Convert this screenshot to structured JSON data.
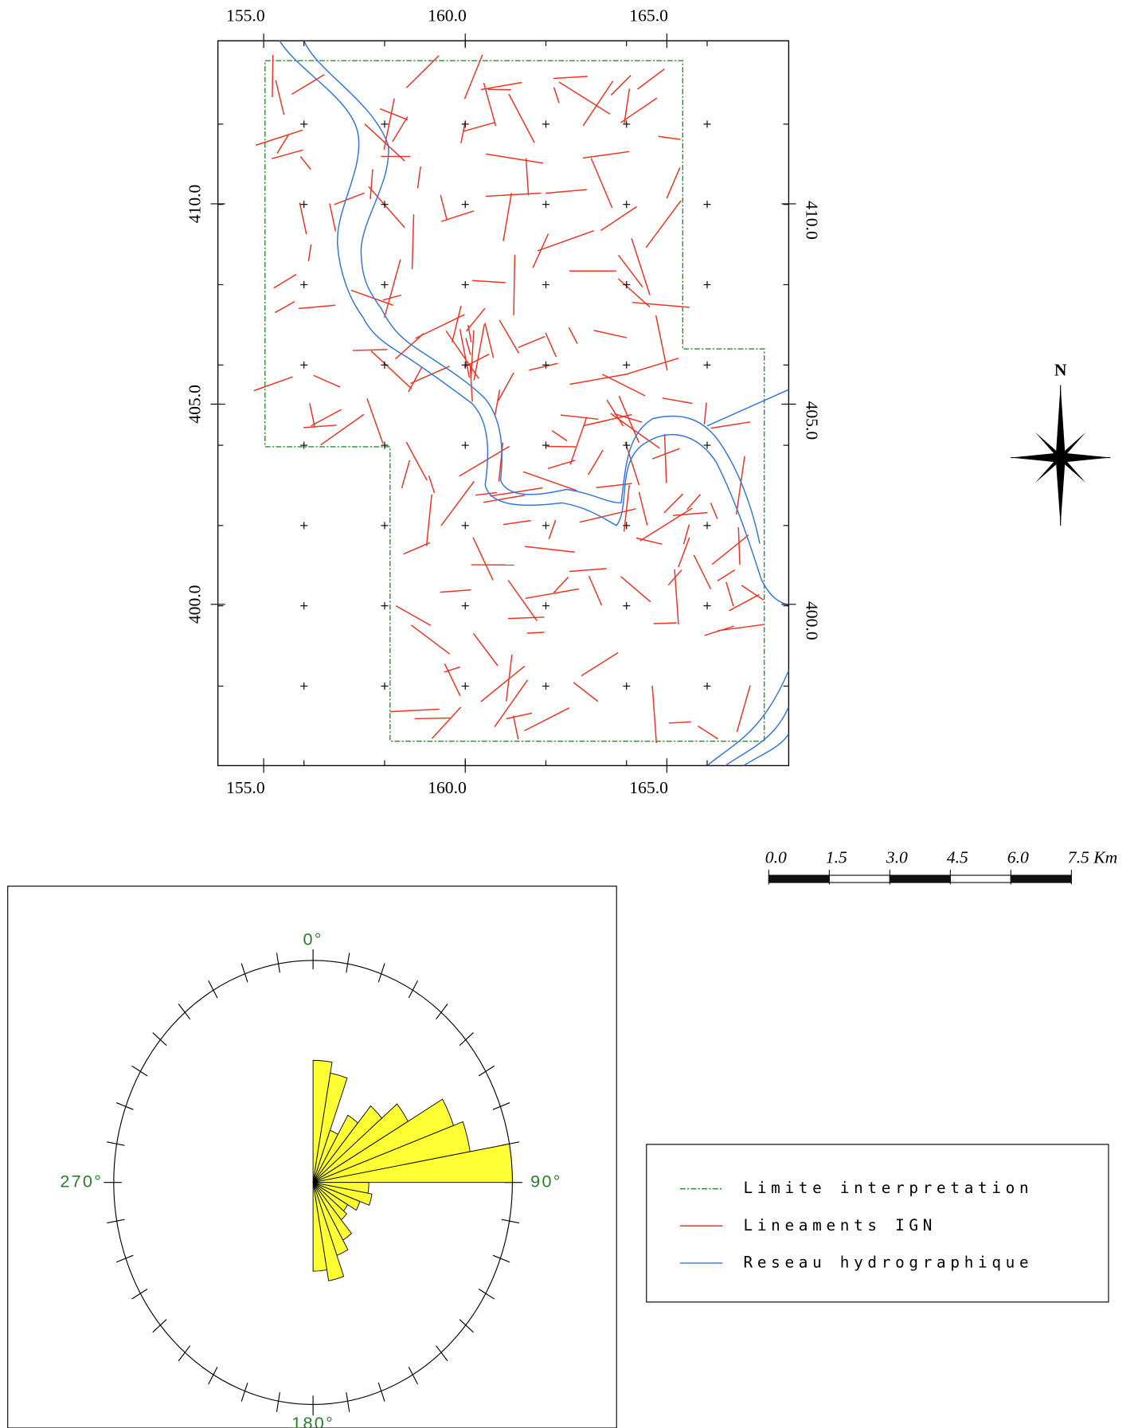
{
  "map": {
    "xticks": [
      {
        "value": 155,
        "label": "155.0"
      },
      {
        "value": 160,
        "label": "160.0"
      },
      {
        "value": 165,
        "label": "165.0"
      }
    ],
    "yticks": [
      {
        "value": 410,
        "label": "410.0"
      },
      {
        "value": 405,
        "label": "405.0"
      },
      {
        "value": 400,
        "label": "400.0"
      }
    ]
  },
  "scale_bar": {
    "labels": [
      "0.0",
      "1.5",
      "3.0",
      "4.5",
      "6.0",
      "7.5 Km"
    ]
  },
  "compass": {
    "label": "N"
  },
  "rose": {
    "labels": [
      "0°",
      "90°",
      "180°",
      "270°"
    ],
    "values": [
      55,
      50,
      25,
      35,
      45,
      55,
      75,
      80,
      100,
      28,
      30,
      25,
      20,
      22,
      30,
      35,
      45,
      40
    ],
    "color": "#ffff33"
  },
  "legend": {
    "items": [
      {
        "label": "Limite interpretation",
        "color": "#2e8b2e"
      },
      {
        "label": "Lineaments IGN",
        "color": "#ee3322"
      },
      {
        "label": "Reseau hydrographique",
        "color": "#3377dd"
      }
    ]
  }
}
